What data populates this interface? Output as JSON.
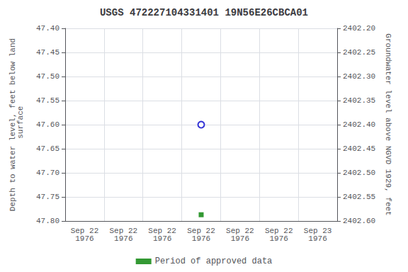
{
  "chart_data": {
    "type": "scatter",
    "title": "USGS 472227104331401 19N56E26CBCA01",
    "ylabel": "Depth to water level, feet below land\n surface",
    "y2label": "Groundwater level above NGVD 1929, feet",
    "categories": [
      "Sep 22\n1976",
      "Sep 22\n1976",
      "Sep 22\n1976",
      "Sep 22\n1976",
      "Sep 22\n1976",
      "Sep 22\n1976",
      "Sep 23\n1976"
    ],
    "series": [
      {
        "color": "#0000cc",
        "marker": "open_circle",
        "values": [
          null,
          null,
          null,
          47.6,
          null,
          null,
          null
        ]
      },
      {
        "name": "Period of approved data",
        "color": "#008000",
        "marker": "square",
        "values": [
          null,
          null,
          null,
          47.787,
          null,
          null,
          null
        ]
      }
    ],
    "ylim": [
      47.8,
      47.4
    ],
    "yticks": [
      {
        "value": 47.4,
        "label": "47.40"
      },
      {
        "value": 47.45,
        "label": "47.45"
      },
      {
        "value": 47.5,
        "label": "47.50"
      },
      {
        "value": 47.55,
        "label": "47.55"
      },
      {
        "value": 47.6,
        "label": "47.60"
      },
      {
        "value": 47.65,
        "label": "47.65"
      },
      {
        "value": 47.7,
        "label": "47.70"
      },
      {
        "value": 47.75,
        "label": "47.75"
      },
      {
        "value": 47.8,
        "label": "47.80"
      }
    ],
    "y2lim": [
      2402.6,
      2402.2
    ],
    "y2ticks": [
      {
        "value": 2402.6,
        "label": "2402.60"
      },
      {
        "value": 2402.55,
        "label": "2402.55"
      },
      {
        "value": 2402.5,
        "label": "2402.50"
      },
      {
        "value": 2402.45,
        "label": "2402.45"
      },
      {
        "value": 2402.4,
        "label": "2402.40"
      },
      {
        "value": 2402.35,
        "label": "2402.35"
      },
      {
        "value": 2402.3,
        "label": "2402.30"
      },
      {
        "value": 2402.25,
        "label": "2402.25"
      },
      {
        "value": 2402.2,
        "label": "2402.20"
      }
    ],
    "grid": true,
    "legend": "bottom"
  }
}
